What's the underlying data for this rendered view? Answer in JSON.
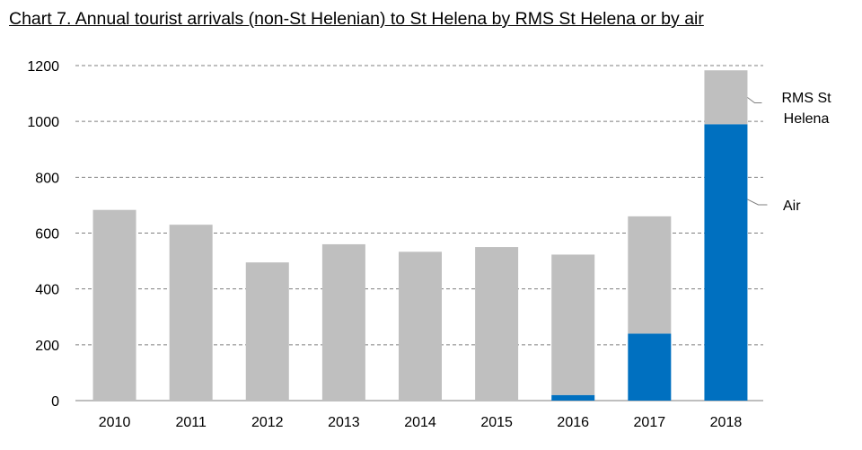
{
  "chart_data": {
    "type": "bar",
    "stacked": true,
    "title": "Chart 7. Annual tourist arrivals (non-St Helenian) to St Helena by RMS St Helena or by air",
    "xlabel": "",
    "ylabel": "",
    "categories": [
      "2010",
      "2011",
      "2012",
      "2013",
      "2014",
      "2015",
      "2016",
      "2017",
      "2018"
    ],
    "series": [
      {
        "name": "Air",
        "color": "#0070C0",
        "values": [
          0,
          0,
          0,
          0,
          0,
          0,
          20,
          240,
          990
        ]
      },
      {
        "name": "RMS St Helena",
        "color": "#BFBFBF",
        "values": [
          683,
          630,
          495,
          560,
          533,
          550,
          503,
          420,
          193
        ]
      }
    ],
    "ylim": [
      0,
      1200
    ],
    "yticks": [
      "0",
      "200",
      "400",
      "600",
      "800",
      "1000",
      "1200"
    ],
    "grid": true,
    "legend": "right, labels beside the last bar",
    "legend_labels": {
      "rms_line1": "RMS St",
      "rms_line2": "Helena",
      "air": "Air"
    }
  }
}
